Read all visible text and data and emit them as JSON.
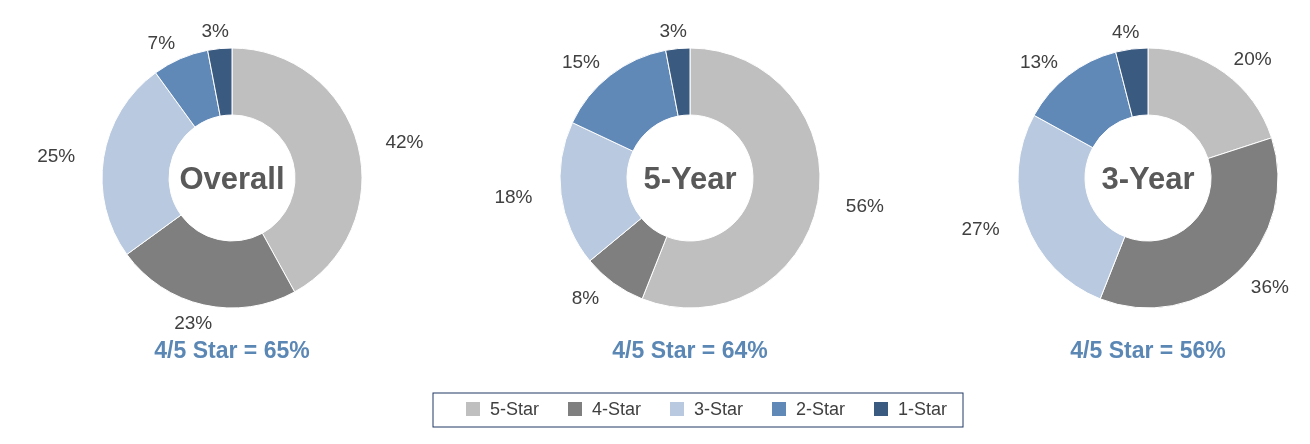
{
  "chart_data": [
    {
      "type": "donut",
      "title": "Overall",
      "subtitle": "4/5 Star = 65%",
      "categories": [
        "5-Star",
        "4-Star",
        "3-Star",
        "2-Star",
        "1-Star"
      ],
      "values": [
        42,
        23,
        25,
        7,
        3
      ],
      "value_labels": [
        "42%",
        "23%",
        "25%",
        "7%",
        "3%"
      ],
      "colors": [
        "#bfbfbf",
        "#7f7f7f",
        "#b9c9e0",
        "#6189b8",
        "#3b5a80"
      ],
      "legend": "bottom"
    },
    {
      "type": "donut",
      "title": "5-Year",
      "subtitle": "4/5 Star = 64%",
      "categories": [
        null,
        null,
        null,
        null,
        null
      ],
      "values": [
        56,
        8,
        18,
        15,
        3
      ],
      "value_labels": [
        "56%",
        "8%",
        "18%",
        "15%",
        "3%"
      ],
      "colors": [
        "#bfbfbf",
        "#7f7f7f",
        "#b9c9e0",
        "#6189b8",
        "#3b5a80"
      ]
    },
    {
      "type": "donut",
      "title": "3-Year",
      "subtitle": "4/5 Star = 56%",
      "categories": [
        null,
        null,
        null,
        null,
        null
      ],
      "values": [
        20,
        36,
        27,
        13,
        4
      ],
      "value_labels": [
        "20%",
        "36%",
        "27%",
        "13%",
        "4%"
      ],
      "colors": [
        "#bfbfbf",
        "#7f7f7f",
        "#b9c9e0",
        "#6189b8",
        "#3b5a80"
      ]
    }
  ]
}
